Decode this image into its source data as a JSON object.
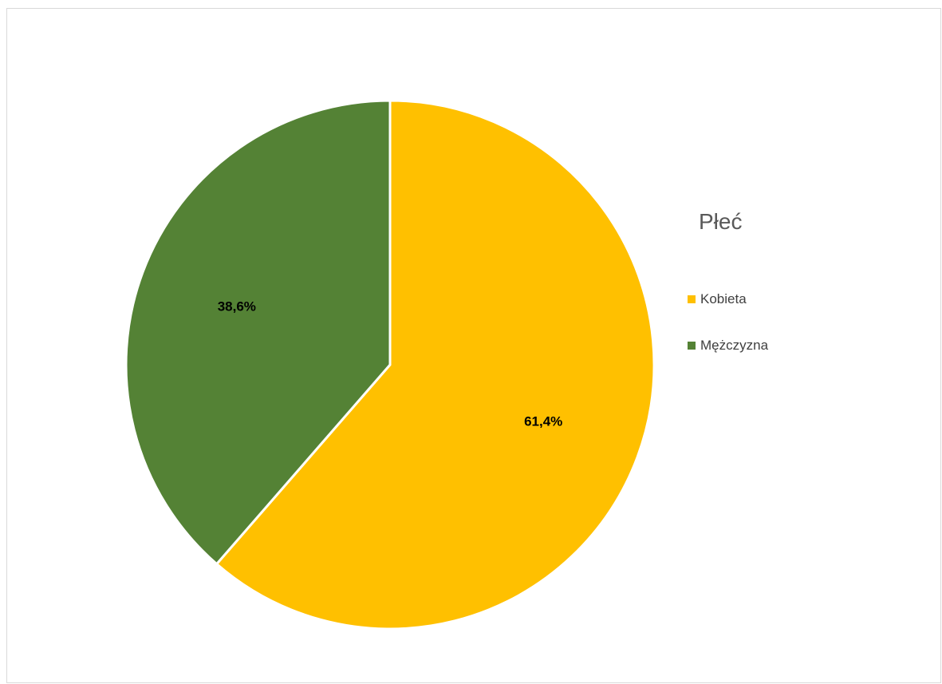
{
  "chart_data": {
    "type": "pie",
    "legend_title": "Płeć",
    "legend_position": "right",
    "slices": [
      {
        "label": "Kobieta",
        "value": 61.4,
        "value_label": "61,4%",
        "color": "#FFC000"
      },
      {
        "label": "Mężczyzna",
        "value": 38.6,
        "value_label": "38,6%",
        "color": "#548235"
      }
    ],
    "start_angle_deg": 0,
    "direction": "clockwise"
  }
}
